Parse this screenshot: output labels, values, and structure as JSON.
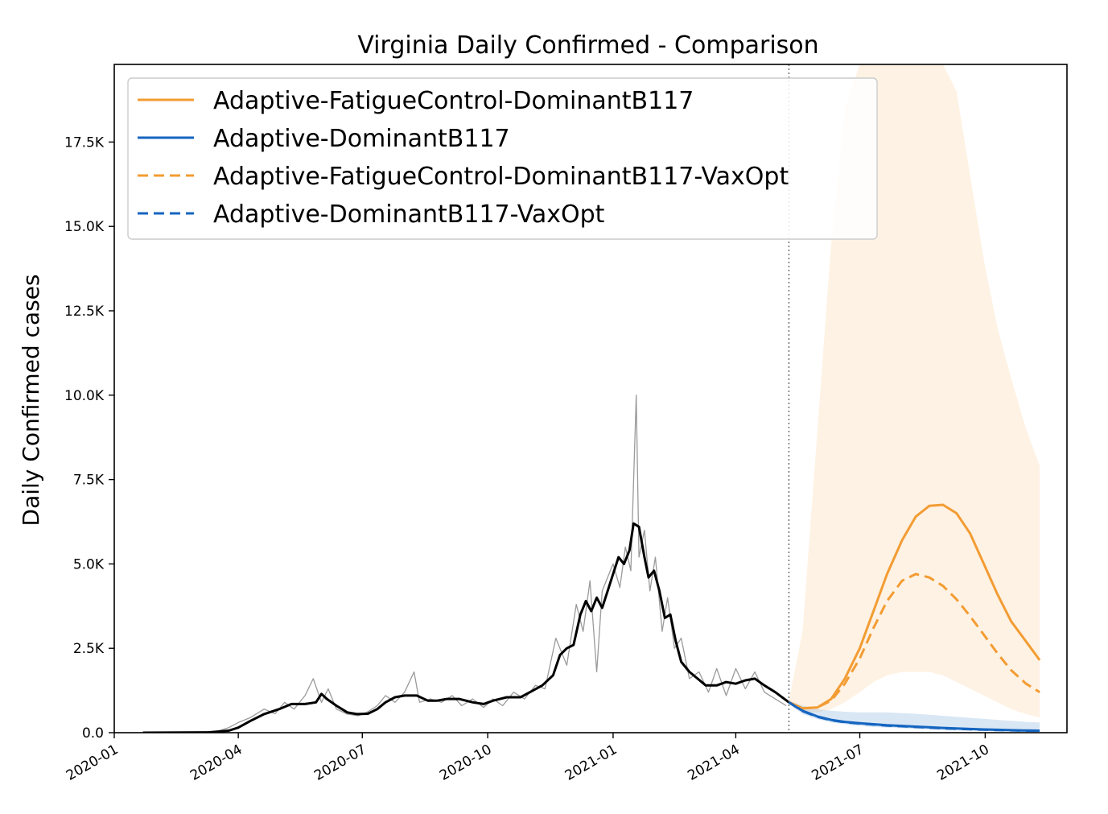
{
  "chart_data": {
    "type": "line",
    "title": "Virginia Daily Confirmed - Comparison",
    "xlabel": "",
    "ylabel": "Daily Confirmed cases",
    "x_type": "date",
    "xlim": [
      "2020-01-01",
      "2021-11-30"
    ],
    "ylim": [
      0,
      19800
    ],
    "grid": false,
    "legend_position": "top-left",
    "forecast_start": "2021-05-10",
    "x_ticks": [
      "2020-01",
      "2020-04",
      "2020-07",
      "2020-10",
      "2021-01",
      "2021-04",
      "2021-07",
      "2021-10"
    ],
    "y_ticks": [
      {
        "value": 0,
        "label": "0.0"
      },
      {
        "value": 2500,
        "label": "2.5K"
      },
      {
        "value": 5000,
        "label": "5.0K"
      },
      {
        "value": 7500,
        "label": "7.5K"
      },
      {
        "value": 10000,
        "label": "10.0K"
      },
      {
        "value": 12500,
        "label": "12.5K"
      },
      {
        "value": 15000,
        "label": "15.0K"
      },
      {
        "value": 17500,
        "label": "17.5K"
      }
    ],
    "observed_daily": [
      [
        "2020-01-22",
        0
      ],
      [
        "2020-03-15",
        20
      ],
      [
        "2020-03-25",
        150
      ],
      [
        "2020-04-01",
        300
      ],
      [
        "2020-04-10",
        450
      ],
      [
        "2020-04-20",
        700
      ],
      [
        "2020-04-28",
        560
      ],
      [
        "2020-05-05",
        900
      ],
      [
        "2020-05-12",
        700
      ],
      [
        "2020-05-20",
        1100
      ],
      [
        "2020-05-26",
        1600
      ],
      [
        "2020-06-01",
        900
      ],
      [
        "2020-06-06",
        1300
      ],
      [
        "2020-06-12",
        700
      ],
      [
        "2020-06-20",
        550
      ],
      [
        "2020-06-28",
        500
      ],
      [
        "2020-07-05",
        620
      ],
      [
        "2020-07-12",
        800
      ],
      [
        "2020-07-18",
        1100
      ],
      [
        "2020-07-25",
        900
      ],
      [
        "2020-08-01",
        1200
      ],
      [
        "2020-08-08",
        1800
      ],
      [
        "2020-08-12",
        900
      ],
      [
        "2020-08-20",
        1000
      ],
      [
        "2020-08-28",
        900
      ],
      [
        "2020-09-05",
        1100
      ],
      [
        "2020-09-12",
        800
      ],
      [
        "2020-09-20",
        1000
      ],
      [
        "2020-09-28",
        750
      ],
      [
        "2020-10-05",
        1000
      ],
      [
        "2020-10-12",
        800
      ],
      [
        "2020-10-20",
        1200
      ],
      [
        "2020-10-28",
        1000
      ],
      [
        "2020-11-05",
        1400
      ],
      [
        "2020-11-12",
        1300
      ],
      [
        "2020-11-20",
        2800
      ],
      [
        "2020-11-28",
        2000
      ],
      [
        "2020-12-05",
        3800
      ],
      [
        "2020-12-10",
        3000
      ],
      [
        "2020-12-15",
        4500
      ],
      [
        "2020-12-20",
        1800
      ],
      [
        "2020-12-24",
        4200
      ],
      [
        "2021-01-01",
        5000
      ],
      [
        "2021-01-06",
        4300
      ],
      [
        "2021-01-10",
        5500
      ],
      [
        "2021-01-14",
        4800
      ],
      [
        "2021-01-18",
        10000
      ],
      [
        "2021-01-20",
        5200
      ],
      [
        "2021-01-24",
        6000
      ],
      [
        "2021-01-28",
        4200
      ],
      [
        "2021-02-01",
        5200
      ],
      [
        "2021-02-06",
        3000
      ],
      [
        "2021-02-10",
        4000
      ],
      [
        "2021-02-15",
        2500
      ],
      [
        "2021-02-20",
        2800
      ],
      [
        "2021-02-26",
        1600
      ],
      [
        "2021-03-05",
        1800
      ],
      [
        "2021-03-12",
        1200
      ],
      [
        "2021-03-18",
        1900
      ],
      [
        "2021-03-25",
        1100
      ],
      [
        "2021-04-01",
        1900
      ],
      [
        "2021-04-08",
        1300
      ],
      [
        "2021-04-15",
        1800
      ],
      [
        "2021-04-22",
        1200
      ],
      [
        "2021-04-30",
        1000
      ],
      [
        "2021-05-08",
        800
      ]
    ],
    "observed_smoothed": [
      [
        "2020-01-22",
        0
      ],
      [
        "2020-03-10",
        10
      ],
      [
        "2020-03-25",
        60
      ],
      [
        "2020-04-01",
        150
      ],
      [
        "2020-04-10",
        350
      ],
      [
        "2020-04-20",
        550
      ],
      [
        "2020-05-01",
        700
      ],
      [
        "2020-05-10",
        850
      ],
      [
        "2020-05-20",
        850
      ],
      [
        "2020-05-28",
        900
      ],
      [
        "2020-06-01",
        1150
      ],
      [
        "2020-06-05",
        1000
      ],
      [
        "2020-06-12",
        800
      ],
      [
        "2020-06-20",
        600
      ],
      [
        "2020-06-27",
        550
      ],
      [
        "2020-07-05",
        560
      ],
      [
        "2020-07-12",
        700
      ],
      [
        "2020-07-18",
        900
      ],
      [
        "2020-07-25",
        1050
      ],
      [
        "2020-08-01",
        1100
      ],
      [
        "2020-08-10",
        1100
      ],
      [
        "2020-08-18",
        950
      ],
      [
        "2020-08-25",
        950
      ],
      [
        "2020-09-01",
        1000
      ],
      [
        "2020-09-10",
        1000
      ],
      [
        "2020-09-20",
        900
      ],
      [
        "2020-09-28",
        850
      ],
      [
        "2020-10-05",
        950
      ],
      [
        "2020-10-15",
        1050
      ],
      [
        "2020-10-25",
        1050
      ],
      [
        "2020-11-01",
        1200
      ],
      [
        "2020-11-10",
        1400
      ],
      [
        "2020-11-18",
        1700
      ],
      [
        "2020-11-23",
        2300
      ],
      [
        "2020-11-28",
        2500
      ],
      [
        "2020-12-03",
        2600
      ],
      [
        "2020-12-08",
        3500
      ],
      [
        "2020-12-12",
        3900
      ],
      [
        "2020-12-16",
        3600
      ],
      [
        "2020-12-20",
        4000
      ],
      [
        "2020-12-24",
        3700
      ],
      [
        "2020-12-28",
        4200
      ],
      [
        "2021-01-01",
        4700
      ],
      [
        "2021-01-05",
        5200
      ],
      [
        "2021-01-09",
        5000
      ],
      [
        "2021-01-13",
        5400
      ],
      [
        "2021-01-16",
        6200
      ],
      [
        "2021-01-20",
        6100
      ],
      [
        "2021-01-24",
        5200
      ],
      [
        "2021-01-27",
        4600
      ],
      [
        "2021-01-31",
        4800
      ],
      [
        "2021-02-04",
        4200
      ],
      [
        "2021-02-08",
        3400
      ],
      [
        "2021-02-12",
        3500
      ],
      [
        "2021-02-16",
        2700
      ],
      [
        "2021-02-20",
        2100
      ],
      [
        "2021-02-26",
        1800
      ],
      [
        "2021-03-04",
        1600
      ],
      [
        "2021-03-10",
        1400
      ],
      [
        "2021-03-18",
        1400
      ],
      [
        "2021-03-25",
        1500
      ],
      [
        "2021-04-01",
        1450
      ],
      [
        "2021-04-08",
        1550
      ],
      [
        "2021-04-15",
        1600
      ],
      [
        "2021-04-22",
        1400
      ],
      [
        "2021-04-30",
        1200
      ],
      [
        "2021-05-10",
        900
      ]
    ],
    "series": [
      {
        "name": "Adaptive-FatigueControl-DominantB117",
        "color": "#f39c33",
        "linestyle": "solid",
        "points": [
          [
            "2021-05-10",
            900
          ],
          [
            "2021-05-20",
            720
          ],
          [
            "2021-05-31",
            750
          ],
          [
            "2021-06-10",
            1000
          ],
          [
            "2021-06-20",
            1600
          ],
          [
            "2021-07-01",
            2500
          ],
          [
            "2021-07-11",
            3600
          ],
          [
            "2021-07-21",
            4700
          ],
          [
            "2021-08-01",
            5700
          ],
          [
            "2021-08-11",
            6400
          ],
          [
            "2021-08-21",
            6720
          ],
          [
            "2021-08-31",
            6750
          ],
          [
            "2021-09-10",
            6500
          ],
          [
            "2021-09-20",
            5900
          ],
          [
            "2021-09-30",
            5000
          ],
          [
            "2021-10-10",
            4100
          ],
          [
            "2021-10-20",
            3300
          ],
          [
            "2021-10-31",
            2700
          ],
          [
            "2021-11-10",
            2150
          ]
        ],
        "band": [
          [
            "2021-05-10",
            950,
            850
          ],
          [
            "2021-05-20",
            3000,
            600
          ],
          [
            "2021-05-31",
            9000,
            600
          ],
          [
            "2021-06-10",
            14500,
            700
          ],
          [
            "2021-06-20",
            18500,
            900
          ],
          [
            "2021-07-01",
            19800,
            1200
          ],
          [
            "2021-07-11",
            19800,
            1500
          ],
          [
            "2021-07-21",
            19800,
            1700
          ],
          [
            "2021-08-01",
            19800,
            1800
          ],
          [
            "2021-08-11",
            19800,
            1800
          ],
          [
            "2021-08-21",
            19800,
            1800
          ],
          [
            "2021-08-31",
            19800,
            1700
          ],
          [
            "2021-09-10",
            19000,
            1500
          ],
          [
            "2021-09-20",
            16500,
            1300
          ],
          [
            "2021-09-30",
            14000,
            1100
          ],
          [
            "2021-10-10",
            12000,
            900
          ],
          [
            "2021-10-20",
            10500,
            700
          ],
          [
            "2021-10-31",
            9000,
            550
          ],
          [
            "2021-11-10",
            7900,
            450
          ]
        ]
      },
      {
        "name": "Adaptive-DominantB117",
        "color": "#1565c0",
        "linestyle": "solid",
        "points": [
          [
            "2021-05-10",
            900
          ],
          [
            "2021-05-20",
            650
          ],
          [
            "2021-05-31",
            480
          ],
          [
            "2021-06-10",
            380
          ],
          [
            "2021-06-20",
            320
          ],
          [
            "2021-07-01",
            280
          ],
          [
            "2021-07-11",
            250
          ],
          [
            "2021-07-21",
            220
          ],
          [
            "2021-08-01",
            200
          ],
          [
            "2021-08-11",
            180
          ],
          [
            "2021-08-21",
            160
          ],
          [
            "2021-08-31",
            140
          ],
          [
            "2021-09-10",
            125
          ],
          [
            "2021-09-20",
            110
          ],
          [
            "2021-09-30",
            95
          ],
          [
            "2021-10-10",
            85
          ],
          [
            "2021-10-20",
            75
          ],
          [
            "2021-10-31",
            65
          ],
          [
            "2021-11-10",
            60
          ]
        ],
        "band": [
          [
            "2021-05-10",
            950,
            850
          ],
          [
            "2021-05-20",
            800,
            550
          ],
          [
            "2021-05-31",
            700,
            400
          ],
          [
            "2021-06-10",
            650,
            300
          ],
          [
            "2021-06-20",
            620,
            250
          ],
          [
            "2021-07-01",
            600,
            200
          ],
          [
            "2021-07-11",
            600,
            170
          ],
          [
            "2021-07-21",
            600,
            150
          ],
          [
            "2021-08-01",
            580,
            130
          ],
          [
            "2021-08-11",
            560,
            110
          ],
          [
            "2021-08-21",
            530,
            95
          ],
          [
            "2021-08-31",
            500,
            80
          ],
          [
            "2021-09-10",
            470,
            70
          ],
          [
            "2021-09-20",
            440,
            60
          ],
          [
            "2021-09-30",
            410,
            50
          ],
          [
            "2021-10-10",
            380,
            40
          ],
          [
            "2021-10-20",
            350,
            35
          ],
          [
            "2021-10-31",
            320,
            30
          ],
          [
            "2021-11-10",
            300,
            25
          ]
        ]
      },
      {
        "name": "Adaptive-FatigueControl-DominantB117-VaxOpt",
        "color": "#f39c33",
        "linestyle": "dashed",
        "points": [
          [
            "2021-05-10",
            900
          ],
          [
            "2021-05-20",
            720
          ],
          [
            "2021-05-31",
            750
          ],
          [
            "2021-06-10",
            950
          ],
          [
            "2021-06-20",
            1450
          ],
          [
            "2021-07-01",
            2200
          ],
          [
            "2021-07-11",
            3100
          ],
          [
            "2021-07-21",
            3900
          ],
          [
            "2021-08-01",
            4500
          ],
          [
            "2021-08-11",
            4700
          ],
          [
            "2021-08-21",
            4600
          ],
          [
            "2021-08-31",
            4350
          ],
          [
            "2021-09-10",
            3950
          ],
          [
            "2021-09-20",
            3450
          ],
          [
            "2021-09-30",
            2900
          ],
          [
            "2021-10-10",
            2350
          ],
          [
            "2021-10-20",
            1850
          ],
          [
            "2021-10-31",
            1450
          ],
          [
            "2021-11-10",
            1200
          ]
        ]
      },
      {
        "name": "Adaptive-DominantB117-VaxOpt",
        "color": "#1565c0",
        "linestyle": "dashed",
        "points": [
          [
            "2021-05-10",
            900
          ],
          [
            "2021-05-20",
            640
          ],
          [
            "2021-05-31",
            470
          ],
          [
            "2021-06-10",
            370
          ],
          [
            "2021-06-20",
            310
          ],
          [
            "2021-07-01",
            270
          ],
          [
            "2021-07-11",
            240
          ],
          [
            "2021-07-21",
            210
          ],
          [
            "2021-08-01",
            190
          ],
          [
            "2021-08-11",
            170
          ],
          [
            "2021-08-21",
            150
          ],
          [
            "2021-08-31",
            130
          ],
          [
            "2021-09-10",
            115
          ],
          [
            "2021-09-20",
            100
          ],
          [
            "2021-09-30",
            88
          ],
          [
            "2021-10-10",
            78
          ],
          [
            "2021-10-20",
            68
          ],
          [
            "2021-10-31",
            60
          ],
          [
            "2021-11-10",
            55
          ]
        ]
      }
    ]
  }
}
